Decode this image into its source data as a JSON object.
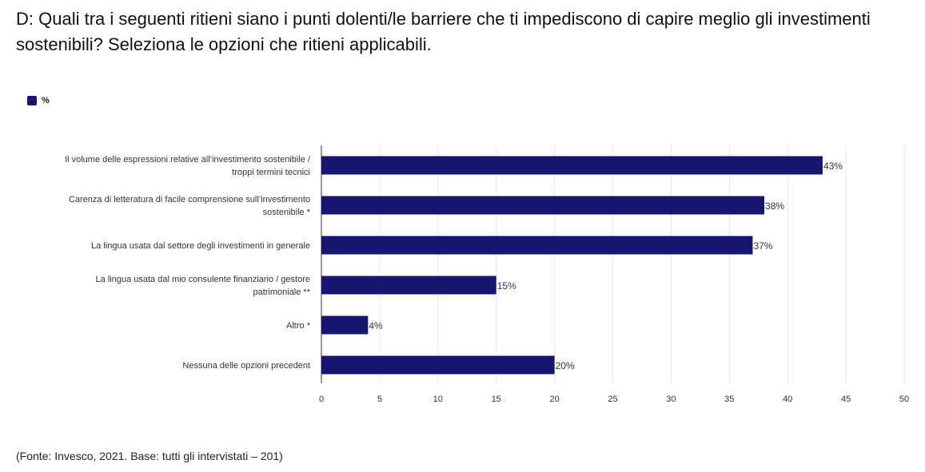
{
  "title": "D: Quali tra i seguenti ritieni siano i punti dolenti/le barriere che ti impediscono di capire meglio gli investimenti sostenibili? Seleziona le opzioni che ritieni applicabili.",
  "footer": "(Fonte: Invesco, 2021. Base: tutti gli intervistati – 201)",
  "colors": {
    "bar": "#161670",
    "grid": "#e6e6e6",
    "axis": "#333333"
  },
  "chart_data": {
    "type": "bar",
    "orientation": "horizontal",
    "legend": {
      "label": "%",
      "placement": "top-left"
    },
    "categories": [
      [
        "Il volume delle espressioni relative all’investimento sostenibile /",
        "troppi termini tecnici"
      ],
      [
        "Carenza di letteratura di facile comprensione sull’investimento",
        "sostenibile *"
      ],
      [
        "La lingua usata dal settore degli investimenti in generale"
      ],
      [
        "La lingua usata dal mio consulente finanziario / gestore",
        "patrimoniale **"
      ],
      [
        "Altro *"
      ],
      [
        "Nessuna delle opzioni precedent"
      ]
    ],
    "series": [
      {
        "name": "%",
        "values": [
          43,
          38,
          37,
          15,
          4,
          20
        ]
      }
    ],
    "value_labels": [
      "43%",
      "38%",
      "37%",
      "15%",
      "4%",
      "20%"
    ],
    "xlim": [
      0,
      50
    ],
    "xticks": [
      0,
      5,
      10,
      15,
      20,
      25,
      30,
      35,
      40,
      45,
      50
    ],
    "grid": true
  }
}
